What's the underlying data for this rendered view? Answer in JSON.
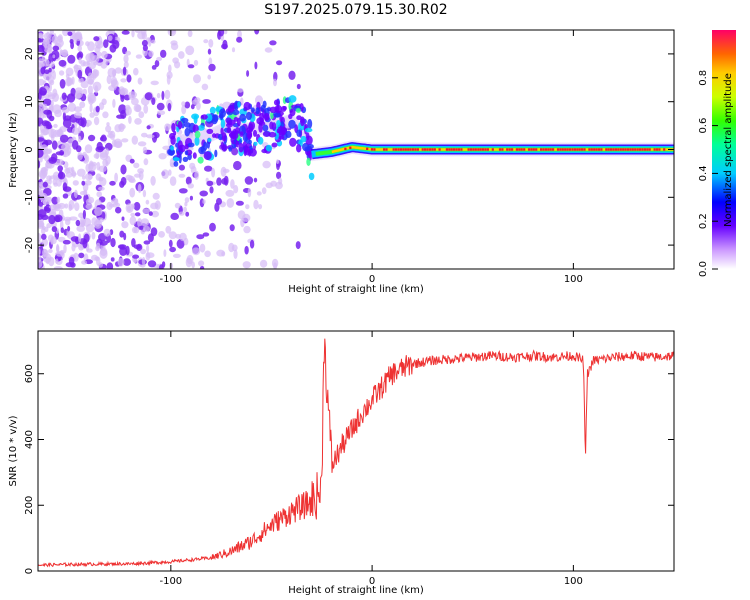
{
  "title": "S197.2025.079.15.30.R02",
  "chart_data": [
    {
      "type": "heatmap",
      "xlabel": "Height of straight line (km)",
      "ylabel": "Frequency (Hz)",
      "xlim": [
        -166,
        150
      ],
      "ylim": [
        -25,
        25
      ],
      "xticks": [
        "-100",
        "0",
        "100"
      ],
      "yticks": [
        "-20",
        "-10",
        "0",
        "10",
        "20"
      ],
      "colorbar": {
        "label": "Normalized spectral amplitude",
        "range": [
          0,
          1
        ],
        "ticks": [
          "0.0",
          "0.2",
          "0.4",
          "0.6",
          "0.8"
        ]
      },
      "ridge": {
        "x": [
          -100,
          -90,
          -80,
          -70,
          -60,
          -50,
          -40,
          -32,
          -30,
          -20,
          -10,
          0,
          10,
          50,
          100,
          150
        ],
        "y": [
          1.5,
          2,
          3,
          5,
          4,
          5,
          6,
          3,
          -1,
          -0.5,
          0.5,
          0,
          0,
          0,
          0,
          0
        ]
      },
      "grid": false,
      "legend": "none"
    },
    {
      "type": "line",
      "xlabel": "Height of straight line (km)",
      "ylabel": "SNR (10 * v/v)",
      "xlim": [
        -166,
        150
      ],
      "ylim": [
        0,
        730
      ],
      "xticks": [
        "-100",
        "0",
        "100"
      ],
      "yticks": [
        "0",
        "200",
        "400",
        "600"
      ],
      "color": "#ee3333",
      "series": [
        {
          "x": [
            -166,
            -150,
            -120,
            -100,
            -80,
            -70,
            -60,
            -50,
            -40,
            -30,
            -25,
            -24,
            -20,
            -15,
            -10,
            -5,
            0,
            10,
            20,
            30,
            40,
            50,
            60,
            70,
            80,
            90,
            100,
            105,
            106,
            107,
            110,
            120,
            130,
            140,
            150
          ],
          "y": [
            18,
            20,
            22,
            28,
            40,
            60,
            90,
            140,
            180,
            210,
            250,
            720,
            320,
            380,
            430,
            480,
            520,
            600,
            630,
            640,
            645,
            650,
            655,
            650,
            655,
            650,
            655,
            640,
            340,
            600,
            640,
            650,
            655,
            650,
            655
          ]
        }
      ],
      "grid": false,
      "legend": "none"
    }
  ]
}
